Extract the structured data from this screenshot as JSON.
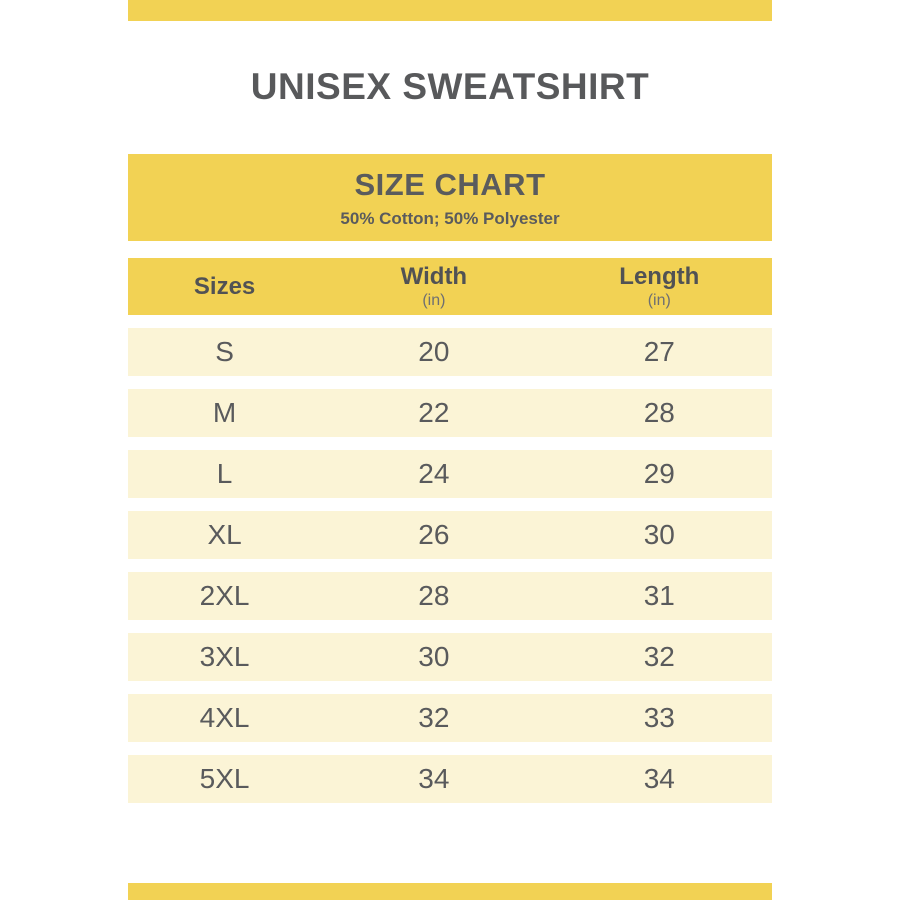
{
  "page": {
    "title": "UNISEX SWEATSHIRT"
  },
  "banner": {
    "heading": "SIZE CHART",
    "subheading": "50% Cotton; 50% Polyester"
  },
  "table": {
    "columns": [
      {
        "label": "Sizes",
        "unit": ""
      },
      {
        "label": "Width",
        "unit": "(in)"
      },
      {
        "label": "Length",
        "unit": "(in)"
      }
    ],
    "rows": [
      [
        "S",
        "20",
        "27"
      ],
      [
        "M",
        "22",
        "28"
      ],
      [
        "L",
        "24",
        "29"
      ],
      [
        "XL",
        "26",
        "30"
      ],
      [
        "2XL",
        "28",
        "31"
      ],
      [
        "3XL",
        "30",
        "32"
      ],
      [
        "4XL",
        "32",
        "33"
      ],
      [
        "5XL",
        "34",
        "34"
      ]
    ]
  },
  "colors": {
    "accent_yellow": "#f2d254",
    "row_cream": "#fbf4d6",
    "text_dark": "#58595b"
  }
}
